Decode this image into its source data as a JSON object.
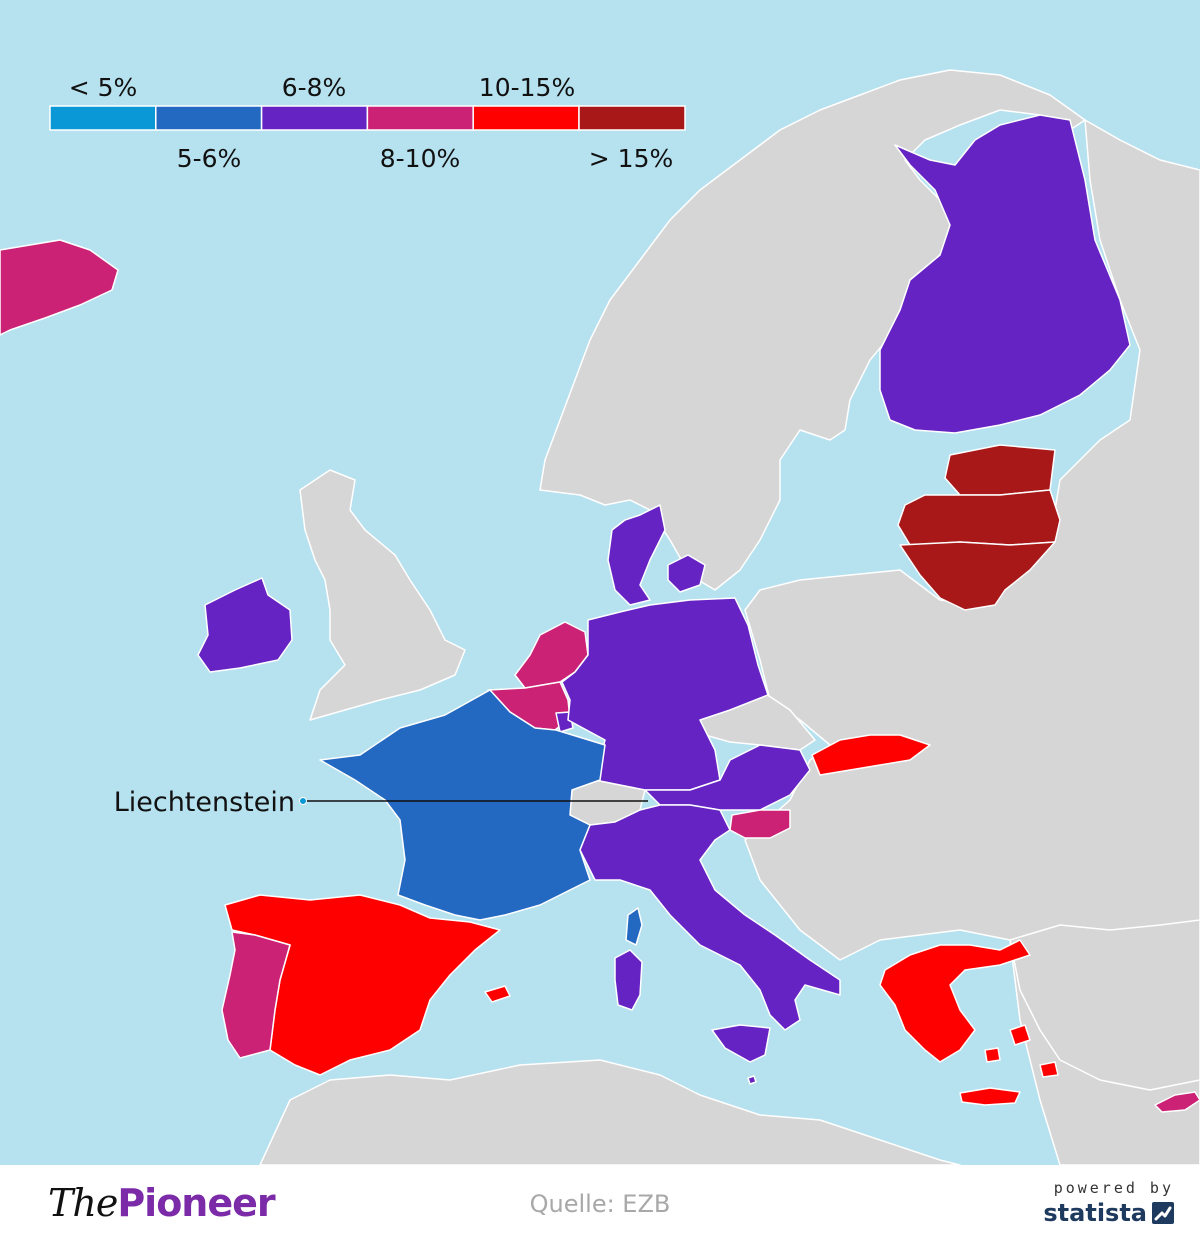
{
  "colors": {
    "sea": "#b6e1ef",
    "land_no_data": "#d6d6d6",
    "border": "#ffffff"
  },
  "legend": [
    {
      "label": "< 5%",
      "color": "#0b98d6"
    },
    {
      "label": "5-6%",
      "color": "#2368c1"
    },
    {
      "label": "6-8%",
      "color": "#6623c3"
    },
    {
      "label": "8-10%",
      "color": "#cc2276"
    },
    {
      "label": "10-15%",
      "color": "#ff0000"
    },
    {
      "label": "> 15%",
      "color": "#a81818"
    }
  ],
  "countries": [
    {
      "name": "Iceland",
      "bin": "8-10%"
    },
    {
      "name": "Finland",
      "bin": "6-8%"
    },
    {
      "name": "Estonia",
      "bin": "> 15%"
    },
    {
      "name": "Latvia",
      "bin": "> 15%"
    },
    {
      "name": "Lithuania",
      "bin": "> 15%"
    },
    {
      "name": "Denmark",
      "bin": "6-8%"
    },
    {
      "name": "Ireland",
      "bin": "6-8%"
    },
    {
      "name": "Netherlands",
      "bin": "8-10%"
    },
    {
      "name": "Belgium",
      "bin": "8-10%"
    },
    {
      "name": "Luxembourg",
      "bin": "6-8%"
    },
    {
      "name": "Germany",
      "bin": "6-8%"
    },
    {
      "name": "France",
      "bin": "5-6%"
    },
    {
      "name": "Austria",
      "bin": "6-8%"
    },
    {
      "name": "Slovakia",
      "bin": "10-15%"
    },
    {
      "name": "Slovenia",
      "bin": "8-10%"
    },
    {
      "name": "Italy",
      "bin": "6-8%"
    },
    {
      "name": "Spain",
      "bin": "10-15%"
    },
    {
      "name": "Portugal",
      "bin": "8-10%"
    },
    {
      "name": "Greece",
      "bin": "10-15%"
    },
    {
      "name": "Cyprus",
      "bin": "8-10%"
    },
    {
      "name": "Malta",
      "bin": "6-8%"
    }
  ],
  "callout": {
    "label": "Liechtenstein"
  },
  "footer": {
    "brand_the": "The",
    "brand_pioneer": "Pioneer",
    "source": "Quelle: EZB",
    "powered_by": "powered by",
    "statista": "statista"
  }
}
